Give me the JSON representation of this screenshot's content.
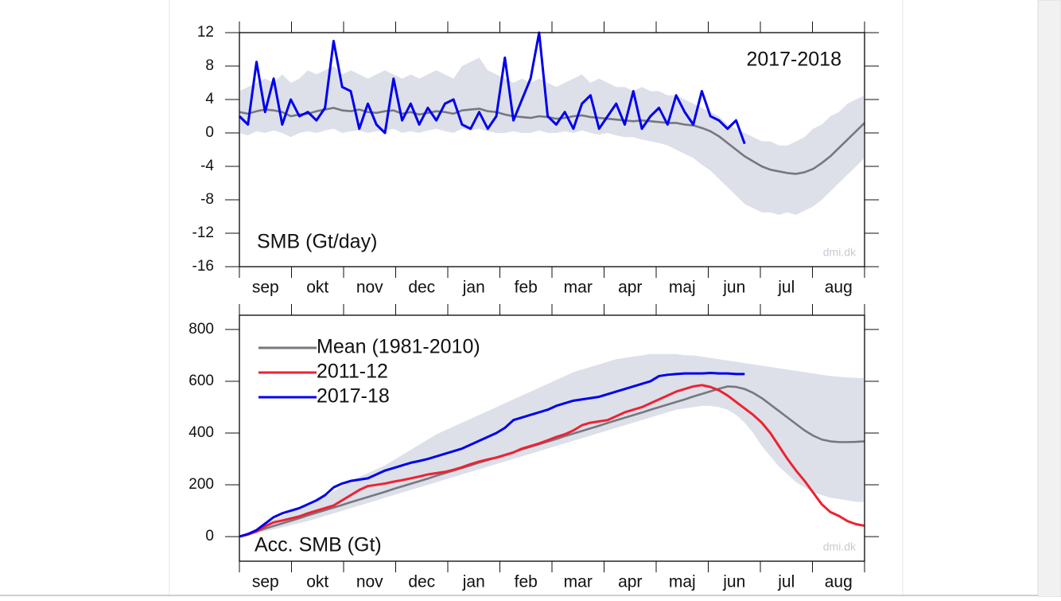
{
  "chart_data": [
    {
      "type": "line",
      "title": "2017-2018",
      "label": "SMB (Gt/day)",
      "credit": "dmi.dk",
      "categories": [
        "sep",
        "okt",
        "nov",
        "dec",
        "jan",
        "feb",
        "mar",
        "apr",
        "maj",
        "jun",
        "jul",
        "aug"
      ],
      "x": [
        0,
        5,
        10,
        15,
        20,
        25,
        30,
        35,
        40,
        45,
        50,
        55,
        60,
        65,
        70,
        75,
        80,
        85,
        90,
        95,
        100,
        105,
        110,
        115,
        120,
        125,
        130,
        135,
        140,
        145,
        150,
        155,
        160,
        165,
        170,
        175,
        180,
        185,
        190,
        195,
        200,
        205,
        210,
        215,
        220,
        225,
        230,
        235,
        240,
        245,
        250,
        255,
        260,
        265,
        270,
        275,
        280,
        285,
        290,
        295,
        300,
        305,
        310,
        315,
        320,
        325,
        330,
        335,
        340,
        345,
        350,
        355,
        360,
        365
      ],
      "xlim": [
        0,
        365
      ],
      "ylim": [
        -16,
        12
      ],
      "yticks": [
        -16,
        -12,
        -8,
        -4,
        0,
        4,
        8,
        12
      ],
      "band": {
        "color": "#dde0e8",
        "upper": [
          5.0,
          5.5,
          6.0,
          6.5,
          6.0,
          7.0,
          6.0,
          6.5,
          7.5,
          7.0,
          7.5,
          8.0,
          7.0,
          7.5,
          7.0,
          6.5,
          7.0,
          7.5,
          7.0,
          6.5,
          7.0,
          6.5,
          7.0,
          7.5,
          7.0,
          6.5,
          8.0,
          8.5,
          9.0,
          7.5,
          7.0,
          6.5,
          6.0,
          6.5,
          6.0,
          6.5,
          6.0,
          5.5,
          6.0,
          6.5,
          7.0,
          6.0,
          6.5,
          6.0,
          5.5,
          5.5,
          5.0,
          5.5,
          5.0,
          5.0,
          4.5,
          4.5,
          4.0,
          3.5,
          3.0,
          2.5,
          2.0,
          1.0,
          0.5,
          0.0,
          -0.5,
          -1.0,
          -1.0,
          -1.5,
          -1.5,
          -1.0,
          -0.5,
          0.5,
          1.0,
          2.0,
          2.5,
          3.5,
          4.0,
          4.5
        ],
        "lower": [
          0.0,
          -0.3,
          0.2,
          0.0,
          0.3,
          0.0,
          -0.5,
          0.0,
          0.2,
          0.0,
          0.3,
          0.5,
          0.0,
          0.2,
          0.3,
          0.0,
          0.2,
          0.3,
          0.5,
          0.0,
          0.2,
          0.0,
          0.3,
          0.5,
          0.2,
          0.0,
          0.5,
          0.3,
          0.5,
          0.2,
          0.0,
          0.0,
          0.2,
          0.0,
          0.0,
          0.3,
          0.0,
          0.0,
          0.2,
          0.0,
          0.3,
          0.0,
          -0.2,
          0.0,
          -0.3,
          -0.5,
          -0.5,
          -0.8,
          -1.0,
          -1.2,
          -1.5,
          -2.0,
          -2.5,
          -3.0,
          -3.8,
          -4.5,
          -5.5,
          -6.5,
          -7.5,
          -8.5,
          -9.0,
          -9.5,
          -9.5,
          -9.8,
          -9.5,
          -9.8,
          -9.3,
          -8.8,
          -8.0,
          -7.0,
          -6.0,
          -5.0,
          -4.0,
          -3.0
        ]
      },
      "series": [
        {
          "color": "#77777f",
          "values": [
            2.5,
            2.3,
            2.6,
            2.8,
            2.7,
            2.5,
            2.0,
            2.2,
            2.3,
            2.6,
            2.8,
            3.0,
            2.7,
            2.6,
            2.8,
            2.5,
            2.4,
            2.6,
            2.7,
            2.3,
            2.5,
            2.2,
            2.4,
            2.6,
            2.5,
            2.3,
            2.7,
            2.8,
            2.9,
            2.6,
            2.5,
            2.2,
            2.0,
            1.9,
            1.8,
            2.0,
            1.9,
            1.7,
            1.8,
            2.0,
            2.1,
            1.9,
            1.8,
            1.7,
            1.6,
            1.5,
            1.4,
            1.5,
            1.4,
            1.3,
            1.2,
            1.2,
            1.0,
            0.9,
            0.6,
            0.2,
            -0.4,
            -1.2,
            -2.0,
            -2.8,
            -3.4,
            -4.0,
            -4.4,
            -4.6,
            -4.8,
            -4.9,
            -4.7,
            -4.3,
            -3.6,
            -2.8,
            -1.8,
            -0.8,
            0.2,
            1.2
          ]
        },
        {
          "color": "#0000ee",
          "values": [
            2.0,
            1.0,
            8.5,
            2.5,
            6.5,
            1.0,
            4.0,
            2.0,
            2.5,
            1.5,
            3.0,
            11.0,
            5.5,
            5.0,
            0.5,
            3.5,
            1.0,
            0.0,
            6.5,
            1.5,
            3.5,
            1.0,
            3.0,
            1.5,
            3.5,
            4.0,
            1.0,
            0.5,
            2.5,
            0.5,
            2.0,
            9.0,
            1.5,
            4.0,
            6.5,
            12.0,
            2.0,
            1.0,
            2.5,
            0.5,
            3.5,
            4.5,
            0.5,
            2.0,
            3.5,
            1.0,
            5.0,
            0.5,
            2.0,
            3.0,
            1.0,
            4.5,
            2.5,
            1.0,
            5.0,
            2.0,
            1.5,
            0.5,
            1.5,
            -1.3,
            null,
            null,
            null,
            null,
            null,
            null,
            null,
            null,
            null,
            null,
            null,
            null,
            null,
            null
          ]
        }
      ]
    },
    {
      "type": "line",
      "label": "Acc. SMB (Gt)",
      "credit": "dmi.dk",
      "legend": "upper left",
      "categories": [
        "sep",
        "okt",
        "nov",
        "dec",
        "jan",
        "feb",
        "mar",
        "apr",
        "maj",
        "jun",
        "jul",
        "aug"
      ],
      "x": [
        0,
        5,
        10,
        15,
        20,
        25,
        30,
        35,
        40,
        45,
        50,
        55,
        60,
        65,
        70,
        75,
        80,
        85,
        90,
        95,
        100,
        105,
        110,
        115,
        120,
        125,
        130,
        135,
        140,
        145,
        150,
        155,
        160,
        165,
        170,
        175,
        180,
        185,
        190,
        195,
        200,
        205,
        210,
        215,
        220,
        225,
        230,
        235,
        240,
        245,
        250,
        255,
        260,
        265,
        270,
        275,
        280,
        285,
        290,
        295,
        300,
        305,
        310,
        315,
        320,
        325,
        330,
        335,
        340,
        345,
        350,
        355,
        360,
        365
      ],
      "xlim": [
        0,
        365
      ],
      "ylim": [
        -95,
        855
      ],
      "yticks": [
        0,
        200,
        400,
        600,
        800
      ],
      "band": {
        "color": "#dde0e8",
        "upper": [
          0,
          15,
          30,
          50,
          65,
          80,
          95,
          110,
          125,
          140,
          155,
          175,
          195,
          215,
          230,
          245,
          260,
          275,
          295,
          315,
          335,
          355,
          375,
          395,
          410,
          425,
          440,
          455,
          470,
          485,
          500,
          515,
          530,
          545,
          560,
          575,
          590,
          605,
          620,
          635,
          645,
          655,
          665,
          675,
          685,
          690,
          695,
          700,
          705,
          705,
          705,
          705,
          700,
          700,
          695,
          690,
          685,
          680,
          675,
          670,
          665,
          660,
          655,
          650,
          645,
          640,
          635,
          630,
          625,
          620,
          618,
          615,
          613,
          612
        ],
        "lower": [
          0,
          5,
          12,
          20,
          28,
          36,
          44,
          52,
          60,
          70,
          80,
          90,
          100,
          110,
          120,
          130,
          140,
          150,
          160,
          170,
          180,
          190,
          200,
          210,
          220,
          230,
          240,
          250,
          260,
          270,
          280,
          290,
          300,
          310,
          320,
          330,
          340,
          350,
          360,
          370,
          380,
          390,
          400,
          410,
          420,
          430,
          440,
          450,
          460,
          470,
          480,
          490,
          495,
          500,
          505,
          505,
          500,
          490,
          470,
          440,
          400,
          350,
          310,
          270,
          240,
          210,
          190,
          170,
          160,
          150,
          145,
          140,
          135,
          133
        ]
      },
      "series": [
        {
          "name": "Mean (1981-2010)",
          "color": "#77777f",
          "values": [
            0,
            10,
            20,
            31,
            41,
            51,
            61,
            71,
            82,
            92,
            102,
            112,
            122,
            133,
            143,
            153,
            163,
            173,
            184,
            194,
            204,
            214,
            224,
            235,
            245,
            255,
            265,
            275,
            286,
            296,
            306,
            316,
            326,
            337,
            347,
            357,
            367,
            377,
            388,
            398,
            408,
            418,
            428,
            439,
            449,
            459,
            469,
            479,
            490,
            500,
            510,
            520,
            530,
            541,
            551,
            561,
            571,
            580,
            578,
            570,
            555,
            535,
            510,
            485,
            460,
            435,
            410,
            390,
            375,
            368,
            365,
            365,
            366,
            368
          ]
        },
        {
          "name": "2011-12",
          "color": "#ee2233",
          "values": [
            0,
            8,
            20,
            40,
            55,
            62,
            70,
            78,
            90,
            100,
            110,
            120,
            140,
            160,
            180,
            195,
            200,
            205,
            212,
            218,
            225,
            232,
            240,
            245,
            250,
            258,
            268,
            280,
            290,
            298,
            305,
            315,
            325,
            340,
            350,
            360,
            372,
            385,
            395,
            410,
            430,
            440,
            445,
            450,
            465,
            480,
            490,
            500,
            515,
            530,
            545,
            560,
            570,
            580,
            585,
            578,
            565,
            545,
            520,
            495,
            470,
            440,
            400,
            350,
            300,
            255,
            215,
            170,
            125,
            95,
            80,
            60,
            48,
            42
          ]
        },
        {
          "name": "2017-18",
          "color": "#0000ee",
          "values": [
            0,
            10,
            25,
            50,
            75,
            90,
            100,
            110,
            125,
            140,
            160,
            190,
            205,
            215,
            220,
            225,
            240,
            255,
            265,
            275,
            285,
            292,
            300,
            310,
            320,
            330,
            340,
            355,
            370,
            385,
            400,
            420,
            450,
            460,
            470,
            480,
            490,
            505,
            515,
            525,
            530,
            535,
            540,
            550,
            560,
            570,
            580,
            590,
            600,
            620,
            625,
            628,
            630,
            630,
            630,
            632,
            630,
            630,
            628,
            628,
            null,
            null,
            null,
            null,
            null,
            null,
            null,
            null,
            null,
            null,
            null,
            null,
            null,
            null
          ]
        }
      ]
    }
  ]
}
